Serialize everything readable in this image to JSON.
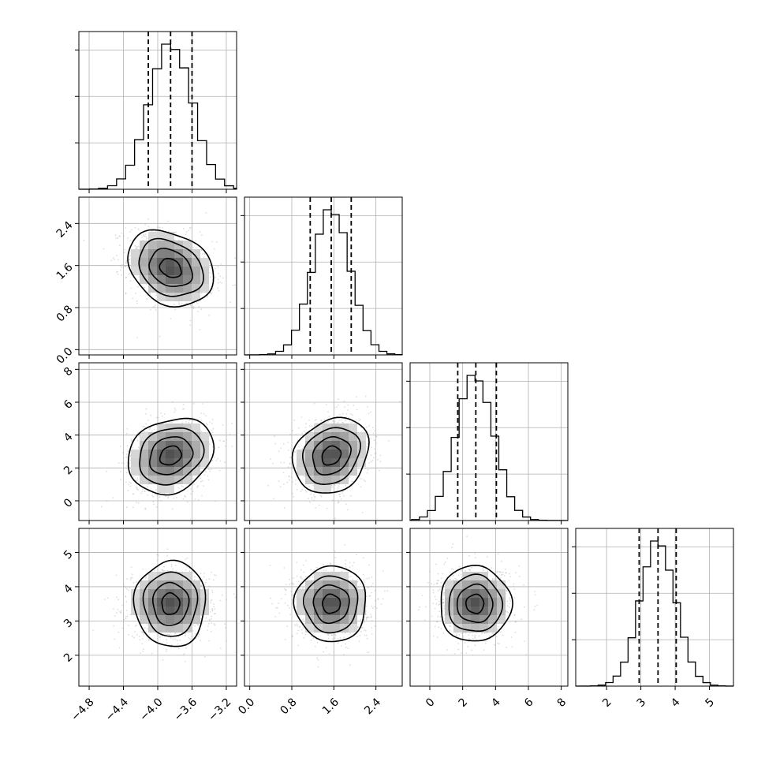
{
  "chart_data": {
    "type": "corner",
    "title": "",
    "parameters": [
      {
        "xlabel": "",
        "range": [
          -4.92,
          -3.08
        ],
        "ticks": [
          -4.8,
          -4.4,
          -4.0,
          -3.6,
          -3.2
        ],
        "tick_labels": [
          "−4.8",
          "−4.4",
          "−4.0",
          "−3.6",
          "−3.2"
        ],
        "mean": -3.85,
        "sd": 0.25,
        "quantiles": [
          -4.11,
          -3.85,
          -3.6
        ]
      },
      {
        "xlabel": "",
        "range": [
          -0.1,
          2.9
        ],
        "ticks": [
          0.0,
          0.8,
          1.6,
          2.4
        ],
        "tick_labels": [
          "0.0",
          "0.8",
          "1.6",
          "2.4"
        ],
        "mean": 1.55,
        "sd": 0.36,
        "quantiles": [
          1.15,
          1.55,
          1.93
        ]
      },
      {
        "xlabel": "",
        "range": [
          -1.2,
          8.4
        ],
        "ticks": [
          0,
          2,
          4,
          6,
          8
        ],
        "tick_labels": [
          "0",
          "2",
          "4",
          "6",
          "8"
        ],
        "mean": 2.75,
        "sd": 1.15,
        "quantiles": [
          1.7,
          2.8,
          4.05
        ]
      },
      {
        "xlabel": "",
        "range": [
          1.1,
          5.7
        ],
        "ticks": [
          2,
          3,
          4,
          5
        ],
        "tick_labels": [
          "2",
          "3",
          "4",
          "5"
        ],
        "mean": 3.5,
        "sd": 0.52,
        "quantiles": [
          2.95,
          3.5,
          4.03
        ]
      }
    ],
    "correlations": [
      [
        1,
        -0.25,
        0.2,
        0.0
      ],
      [
        -0.25,
        1,
        0.2,
        0.0
      ],
      [
        0.2,
        0.2,
        1,
        0.0
      ],
      [
        0.0,
        0.0,
        0.0,
        1
      ]
    ],
    "histogram_bins": 20,
    "contour_levels_sigma": [
      0.5,
      1.0,
      1.5,
      2.0
    ],
    "grid": true,
    "colors": {
      "hist": "#000000",
      "points": "#b4b4b4",
      "density": "#000000"
    }
  }
}
